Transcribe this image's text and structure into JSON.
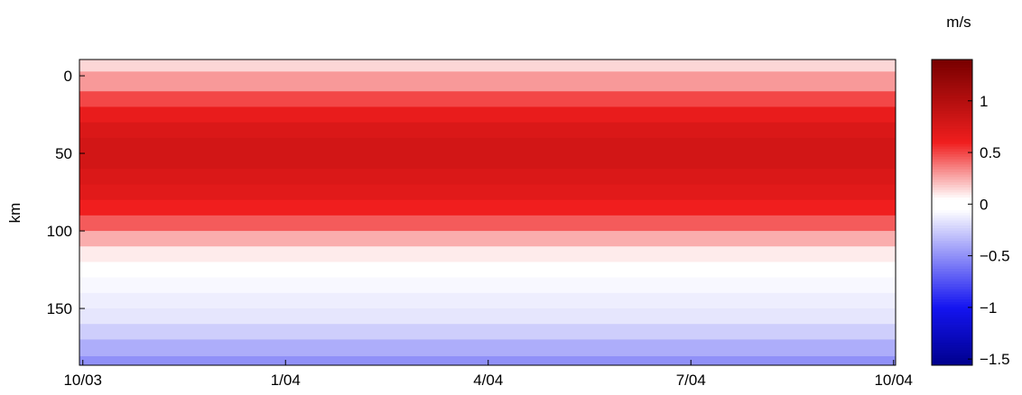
{
  "chart_data": {
    "type": "depth-time-field",
    "ylabel": "km",
    "colorbar_label": "m/s",
    "xlim": [
      -0.05,
      12.03
    ],
    "xticks": [
      {
        "value": 0,
        "label": "10/03"
      },
      {
        "value": 3,
        "label": "1/04"
      },
      {
        "value": 6,
        "label": "4/04"
      },
      {
        "value": 9,
        "label": "7/04"
      },
      {
        "value": 12,
        "label": "10/04"
      }
    ],
    "ylim": [
      -10.5,
      186.6
    ],
    "yticks": [
      0,
      50,
      100,
      150
    ],
    "y_inverted": true,
    "clim": [
      -1.56,
      1.4
    ],
    "cticks": [
      {
        "value": -1.5,
        "label": "−1.5"
      },
      {
        "value": -1,
        "label": "−1"
      },
      {
        "value": -0.5,
        "label": "−0.5"
      },
      0,
      0.5,
      1
    ],
    "field": {
      "depths": [
        -10.5,
        5,
        15,
        25,
        35,
        45,
        55,
        65,
        75,
        85,
        95,
        105,
        115,
        125,
        135,
        145,
        155,
        165,
        175,
        186.6
      ],
      "values": [
        0.15,
        0.3,
        0.5,
        0.65,
        0.75,
        0.8,
        0.8,
        0.75,
        0.7,
        0.6,
        0.45,
        0.25,
        0.1,
        0.02,
        -0.08,
        -0.12,
        -0.15,
        -0.25,
        -0.38,
        -0.5
      ]
    }
  }
}
